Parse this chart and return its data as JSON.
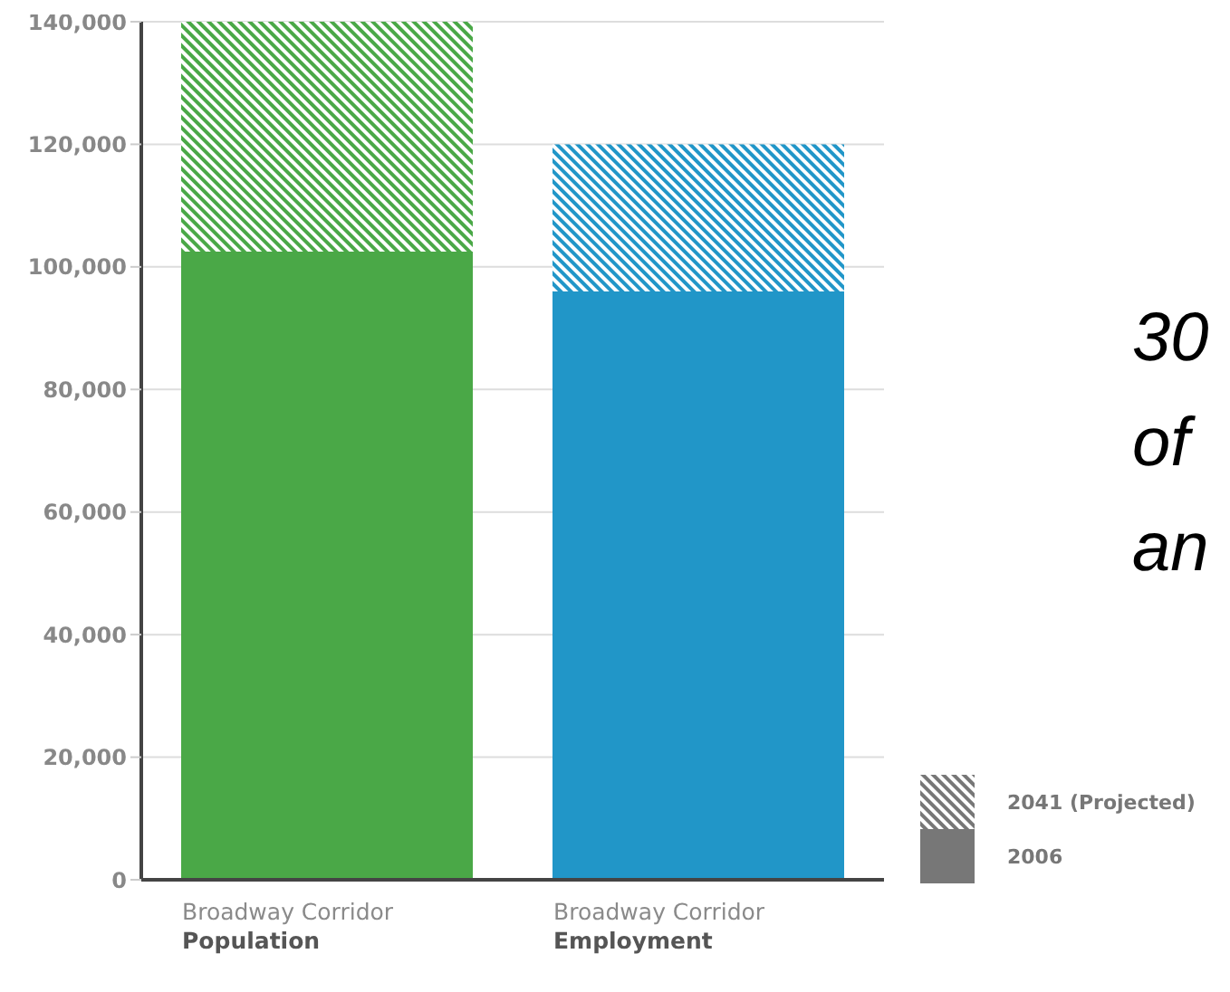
{
  "chart_data": {
    "type": "bar",
    "stacked": true,
    "categories": [
      "Broadway Corridor\nPopulation",
      "Broadway Corridor\nEmployment"
    ],
    "series": [
      {
        "name": "2006",
        "color": "#777777",
        "colors": [
          "#4aa847",
          "#2196c8"
        ],
        "values": [
          102500,
          96000
        ]
      },
      {
        "name": "2041 (Projected)",
        "color": "#777777",
        "colors": [
          "#4aa847",
          "#2196c8"
        ],
        "values": [
          37500,
          24000
        ]
      }
    ],
    "ylim": [
      0,
      140000
    ],
    "yticks": [
      0,
      {
        "value": 20000,
        "label": "20,000"
      },
      {
        "value": 40000,
        "label": "40,000"
      },
      {
        "value": 60000,
        "label": "60,000"
      },
      {
        "value": 80000,
        "label": "80,000"
      },
      {
        "value": 100000,
        "label": "100,000"
      },
      {
        "value": 120000,
        "label": "120,000"
      },
      {
        "value": 140000,
        "label": "140,000"
      }
    ],
    "grid": "y",
    "legend": "bottom right",
    "annotations": [
      "30",
      "of",
      "an"
    ]
  }
}
